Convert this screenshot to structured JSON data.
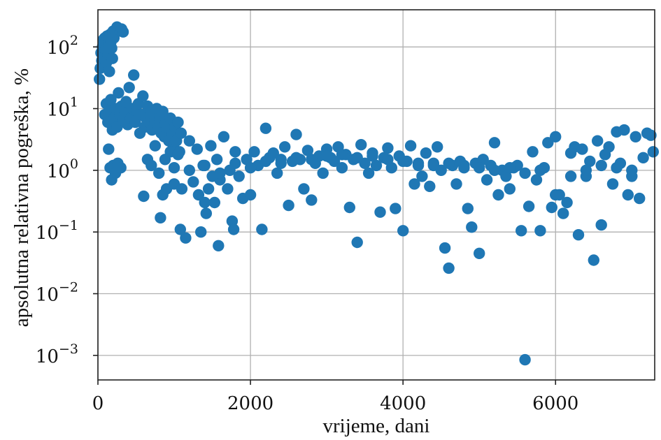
{
  "chart_data": {
    "type": "scatter",
    "title": "",
    "xlabel": "vrijeme, dani",
    "ylabel": "apsolutna relativna pogreška, %",
    "xlim": [
      0,
      7300
    ],
    "ylim": [
      0.0004,
      400
    ],
    "yscale": "log",
    "grid": true,
    "marker_color": "#1f77b4",
    "xticks": [
      {
        "value": 0,
        "label": "0"
      },
      {
        "value": 2000,
        "label": "2000"
      },
      {
        "value": 4000,
        "label": "4000"
      },
      {
        "value": 6000,
        "label": "6000"
      }
    ],
    "yticks": [
      {
        "value": 0.001,
        "base": "10",
        "exp": "−3"
      },
      {
        "value": 0.01,
        "base": "10",
        "exp": "−2"
      },
      {
        "value": 0.1,
        "base": "10",
        "exp": "−1"
      },
      {
        "value": 1,
        "base": "10",
        "exp": "0"
      },
      {
        "value": 10,
        "base": "10",
        "exp": "1"
      },
      {
        "value": 100,
        "base": "10",
        "exp": "2"
      }
    ],
    "points": [
      [
        20,
        30
      ],
      [
        30,
        45
      ],
      [
        40,
        80
      ],
      [
        50,
        60
      ],
      [
        60,
        100
      ],
      [
        70,
        130
      ],
      [
        80,
        70
      ],
      [
        90,
        140
      ],
      [
        100,
        90
      ],
      [
        110,
        55
      ],
      [
        120,
        150
      ],
      [
        130,
        75
      ],
      [
        140,
        110
      ],
      [
        150,
        40
      ],
      [
        160,
        160
      ],
      [
        170,
        120
      ],
      [
        180,
        95
      ],
      [
        190,
        65
      ],
      [
        200,
        180
      ],
      [
        210,
        140
      ],
      [
        230,
        170
      ],
      [
        250,
        210
      ],
      [
        270,
        200
      ],
      [
        290,
        185
      ],
      [
        310,
        195
      ],
      [
        330,
        175
      ],
      [
        90,
        8
      ],
      [
        110,
        12
      ],
      [
        130,
        6
      ],
      [
        150,
        9
      ],
      [
        170,
        14
      ],
      [
        190,
        4.5
      ],
      [
        210,
        7
      ],
      [
        230,
        10
      ],
      [
        250,
        5
      ],
      [
        270,
        18
      ],
      [
        290,
        8
      ],
      [
        310,
        11
      ],
      [
        330,
        6.5
      ],
      [
        350,
        9
      ],
      [
        370,
        13
      ],
      [
        390,
        5.5
      ],
      [
        410,
        22
      ],
      [
        430,
        7
      ],
      [
        450,
        10
      ],
      [
        470,
        35
      ],
      [
        490,
        6
      ],
      [
        510,
        9
      ],
      [
        530,
        12
      ],
      [
        550,
        4
      ],
      [
        570,
        8
      ],
      [
        590,
        16
      ],
      [
        610,
        5
      ],
      [
        630,
        7
      ],
      [
        650,
        11
      ],
      [
        670,
        6
      ],
      [
        690,
        9
      ],
      [
        710,
        4.5
      ],
      [
        730,
        8
      ],
      [
        750,
        6
      ],
      [
        770,
        10
      ],
      [
        790,
        5
      ],
      [
        810,
        7
      ],
      [
        830,
        4
      ],
      [
        850,
        9
      ],
      [
        870,
        3.5
      ],
      [
        890,
        6
      ],
      [
        910,
        5
      ],
      [
        930,
        3
      ],
      [
        950,
        7
      ],
      [
        970,
        4
      ],
      [
        990,
        2.5
      ],
      [
        1010,
        5
      ],
      [
        1030,
        3
      ],
      [
        1050,
        6
      ],
      [
        1070,
        2
      ],
      [
        1090,
        4
      ],
      [
        140,
        2.2
      ],
      [
        160,
        1.1
      ],
      [
        180,
        0.7
      ],
      [
        200,
        1.2
      ],
      [
        230,
        0.9
      ],
      [
        260,
        1.3
      ],
      [
        300,
        1.1
      ],
      [
        600,
        0.38
      ],
      [
        650,
        1.5
      ],
      [
        700,
        1.2
      ],
      [
        750,
        2.5
      ],
      [
        800,
        0.9
      ],
      [
        820,
        0.17
      ],
      [
        850,
        0.4
      ],
      [
        880,
        1.5
      ],
      [
        900,
        0.5
      ],
      [
        950,
        2
      ],
      [
        1000,
        0.6
      ],
      [
        1050,
        1.8
      ],
      [
        1080,
        0.11
      ],
      [
        1100,
        0.5
      ],
      [
        1150,
        0.08
      ],
      [
        1200,
        3
      ],
      [
        1250,
        0.65
      ],
      [
        1300,
        2.2
      ],
      [
        1320,
        0.4
      ],
      [
        1350,
        0.1
      ],
      [
        1380,
        1.2
      ],
      [
        1400,
        0.3
      ],
      [
        1420,
        0.2
      ],
      [
        1450,
        0.5
      ],
      [
        1480,
        2.5
      ],
      [
        1500,
        0.8
      ],
      [
        1530,
        0.3
      ],
      [
        1560,
        1.5
      ],
      [
        1580,
        0.06
      ],
      [
        1600,
        0.7
      ],
      [
        1650,
        3.5
      ],
      [
        1700,
        0.5
      ],
      [
        1730,
        1
      ],
      [
        1760,
        0.15
      ],
      [
        1780,
        0.11
      ],
      [
        1800,
        2
      ],
      [
        1850,
        0.8
      ],
      [
        1900,
        0.35
      ],
      [
        1950,
        1.5
      ],
      [
        2000,
        0.4
      ],
      [
        2050,
        2
      ],
      [
        2100,
        1.2
      ],
      [
        2150,
        0.11
      ],
      [
        2200,
        4.8
      ],
      [
        2250,
        1.6
      ],
      [
        2300,
        1.9
      ],
      [
        2350,
        0.9
      ],
      [
        2400,
        1.3
      ],
      [
        2450,
        2.4
      ],
      [
        2500,
        0.27
      ],
      [
        2550,
        1.4
      ],
      [
        2600,
        3.8
      ],
      [
        2650,
        1.5
      ],
      [
        2700,
        0.5
      ],
      [
        2750,
        2.1
      ],
      [
        2800,
        0.33
      ],
      [
        2850,
        1.3
      ],
      [
        2900,
        1.7
      ],
      [
        2950,
        0.9
      ],
      [
        3000,
        2.2
      ],
      [
        3050,
        1.6
      ],
      [
        3100,
        1.4
      ],
      [
        3150,
        2.4
      ],
      [
        3200,
        1.1
      ],
      [
        3250,
        1.8
      ],
      [
        3300,
        0.25
      ],
      [
        3350,
        1.5
      ],
      [
        3400,
        0.068
      ],
      [
        3450,
        2.6
      ],
      [
        3500,
        1.3
      ],
      [
        3550,
        0.9
      ],
      [
        3600,
        1.9
      ],
      [
        3650,
        1.2
      ],
      [
        3700,
        0.21
      ],
      [
        3750,
        1.6
      ],
      [
        3800,
        2.3
      ],
      [
        3850,
        1.1
      ],
      [
        3900,
        0.24
      ],
      [
        3950,
        1.7
      ],
      [
        4000,
        0.105
      ],
      [
        4050,
        1.4
      ],
      [
        4100,
        2.5
      ],
      [
        4150,
        0.6
      ],
      [
        4200,
        1.2
      ],
      [
        4250,
        0.8
      ],
      [
        4300,
        1.9
      ],
      [
        4350,
        0.55
      ],
      [
        4400,
        1.3
      ],
      [
        4450,
        2.4
      ],
      [
        4500,
        1
      ],
      [
        4550,
        0.055
      ],
      [
        4600,
        0.026
      ],
      [
        4650,
        1.2
      ],
      [
        4700,
        0.6
      ],
      [
        4750,
        1.4
      ],
      [
        4800,
        1.1
      ],
      [
        4850,
        0.24
      ],
      [
        4900,
        0.12
      ],
      [
        4950,
        1.3
      ],
      [
        5000,
        0.045
      ],
      [
        5050,
        1.5
      ],
      [
        5100,
        0.7
      ],
      [
        5150,
        1.2
      ],
      [
        5200,
        2.8
      ],
      [
        5250,
        0.4
      ],
      [
        5300,
        1
      ],
      [
        5350,
        0.8
      ],
      [
        5400,
        0.5
      ],
      [
        5450,
        1.1
      ],
      [
        5500,
        1.2
      ],
      [
        5550,
        0.105
      ],
      [
        5600,
        0.00085
      ],
      [
        5650,
        0.26
      ],
      [
        5700,
        2
      ],
      [
        5750,
        0.7
      ],
      [
        5800,
        0.105
      ],
      [
        5850,
        1.1
      ],
      [
        5900,
        2.8
      ],
      [
        5950,
        0.25
      ],
      [
        6000,
        3.5
      ],
      [
        6050,
        0.4
      ],
      [
        6100,
        0.2
      ],
      [
        6150,
        0.3
      ],
      [
        6200,
        1.9
      ],
      [
        6250,
        2.4
      ],
      [
        6300,
        0.09
      ],
      [
        6350,
        2.2
      ],
      [
        6400,
        0.8
      ],
      [
        6450,
        1.4
      ],
      [
        6500,
        0.035
      ],
      [
        6550,
        3
      ],
      [
        6600,
        0.13
      ],
      [
        6650,
        1.8
      ],
      [
        6700,
        2.4
      ],
      [
        6750,
        0.6
      ],
      [
        6800,
        4.2
      ],
      [
        6850,
        1.3
      ],
      [
        6900,
        4.5
      ],
      [
        6950,
        0.4
      ],
      [
        7000,
        0.8
      ],
      [
        7050,
        3.5
      ],
      [
        7100,
        0.35
      ],
      [
        7150,
        1.6
      ],
      [
        7200,
        4
      ],
      [
        7250,
        3.7
      ],
      [
        7280,
        2
      ],
      [
        1000,
        1.1
      ],
      [
        1200,
        1
      ],
      [
        1400,
        1.2
      ],
      [
        1600,
        0.9
      ],
      [
        1800,
        1.3
      ],
      [
        2000,
        1.1
      ],
      [
        2200,
        1.4
      ],
      [
        2400,
        1.5
      ],
      [
        2600,
        1.6
      ],
      [
        2800,
        1.5
      ],
      [
        3000,
        1.7
      ],
      [
        3200,
        1.8
      ],
      [
        3400,
        1.6
      ],
      [
        3600,
        1.7
      ],
      [
        3800,
        1.5
      ],
      [
        4000,
        1.4
      ],
      [
        4200,
        1.3
      ],
      [
        4400,
        1.2
      ],
      [
        4600,
        1.3
      ],
      [
        4800,
        1.2
      ],
      [
        5000,
        1.1
      ],
      [
        5200,
        1
      ],
      [
        5400,
        1.1
      ],
      [
        5600,
        0.9
      ],
      [
        5800,
        1
      ],
      [
        6000,
        0.4
      ],
      [
        6200,
        0.8
      ],
      [
        6400,
        1
      ],
      [
        6600,
        1.2
      ],
      [
        6800,
        1.1
      ],
      [
        7000,
        1
      ]
    ]
  }
}
